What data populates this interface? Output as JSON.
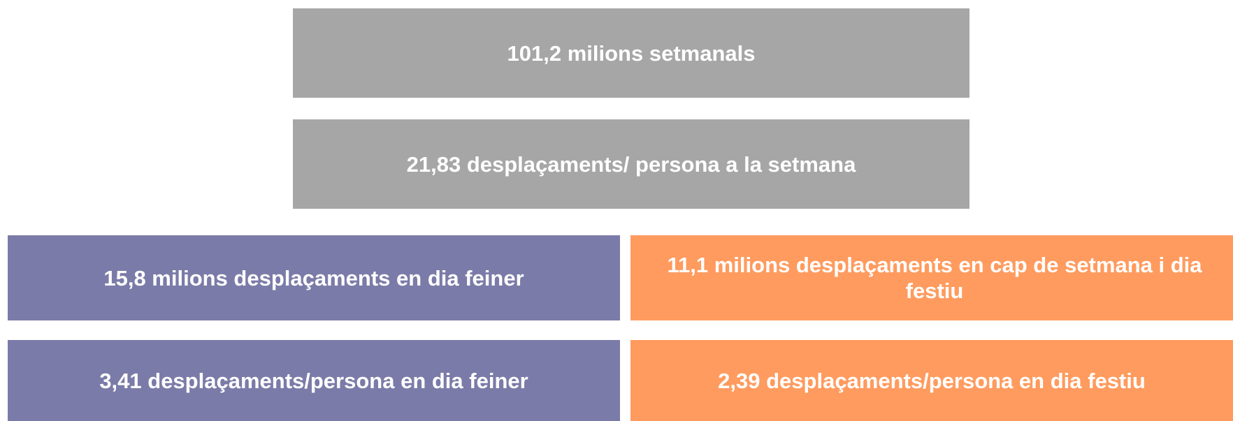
{
  "boxes": [
    {
      "label": "101,2 milions setmanals"
    },
    {
      "label": "21,83 desplaçaments/ persona a la setmana"
    },
    {
      "label": "15,8 milions desplaçaments en dia feiner"
    },
    {
      "label": "11,1 milions desplaçaments en cap de setmana i dia festiu"
    },
    {
      "label": "3,41 desplaçaments/persona en dia feiner"
    },
    {
      "label": "2,39 desplaçaments/persona en dia festiu"
    }
  ]
}
